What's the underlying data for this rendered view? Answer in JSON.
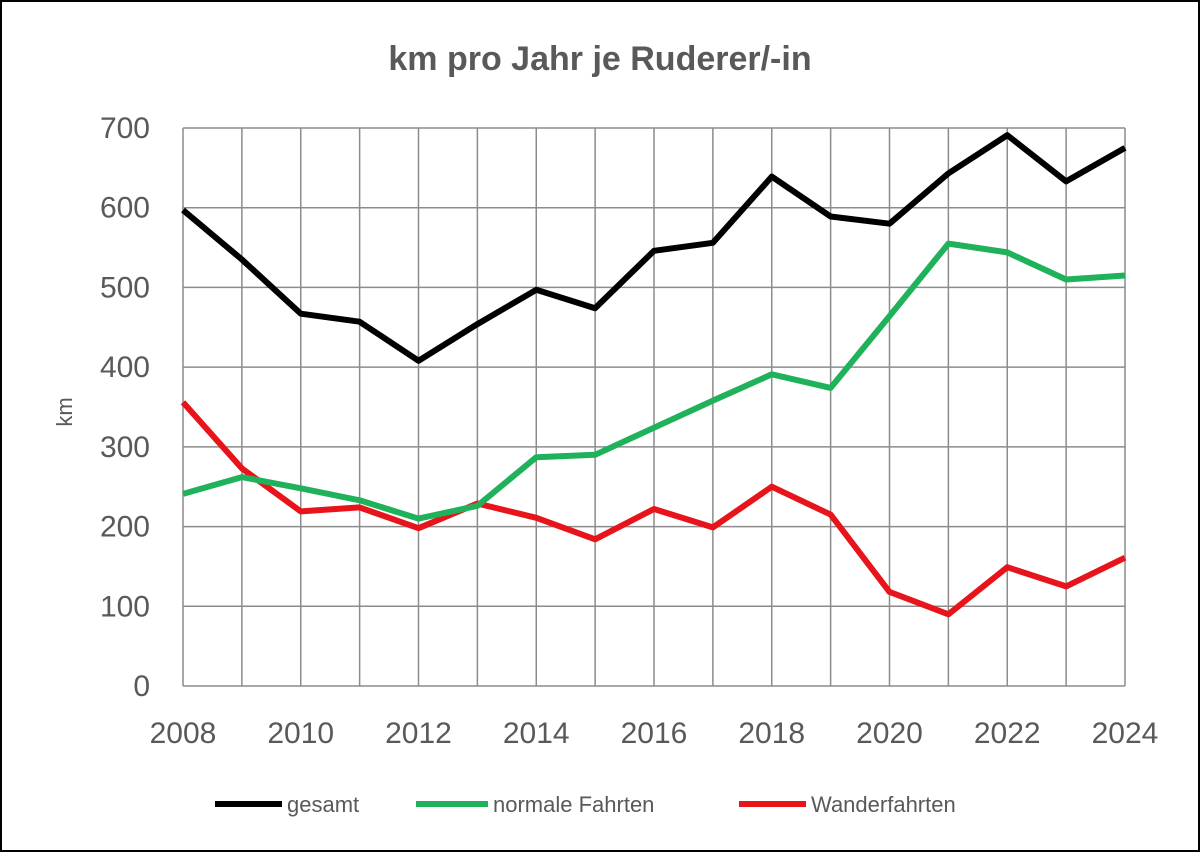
{
  "chart_data": {
    "type": "line",
    "title": "km pro Jahr je Ruderer/-in",
    "ylabel": "km",
    "xlabel": "",
    "x": [
      2008,
      2009,
      2010,
      2011,
      2012,
      2013,
      2014,
      2015,
      2016,
      2017,
      2018,
      2019,
      2020,
      2021,
      2022,
      2023,
      2024
    ],
    "x_ticks": [
      2008,
      2010,
      2012,
      2014,
      2016,
      2018,
      2020,
      2022,
      2024
    ],
    "ylim": [
      0,
      700
    ],
    "y_ticks": [
      0,
      100,
      200,
      300,
      400,
      500,
      600,
      700
    ],
    "grid": true,
    "legend_position": "bottom",
    "series": [
      {
        "name": "gesamt",
        "color": "#000000",
        "values": [
          597,
          535,
          467,
          457,
          408,
          454,
          497,
          474,
          546,
          556,
          639,
          589,
          580,
          643,
          691,
          633,
          675
        ]
      },
      {
        "name": "normale Fahrten",
        "color": "#1fb25a",
        "values": [
          241,
          262,
          248,
          233,
          210,
          226,
          287,
          290,
          324,
          358,
          391,
          374,
          464,
          555,
          544,
          510,
          515
        ]
      },
      {
        "name": "Wanderfahrten",
        "color": "#e8141b",
        "values": [
          356,
          273,
          219,
          224,
          198,
          229,
          211,
          184,
          222,
          199,
          250,
          215,
          118,
          90,
          149,
          125,
          161
        ]
      }
    ]
  }
}
